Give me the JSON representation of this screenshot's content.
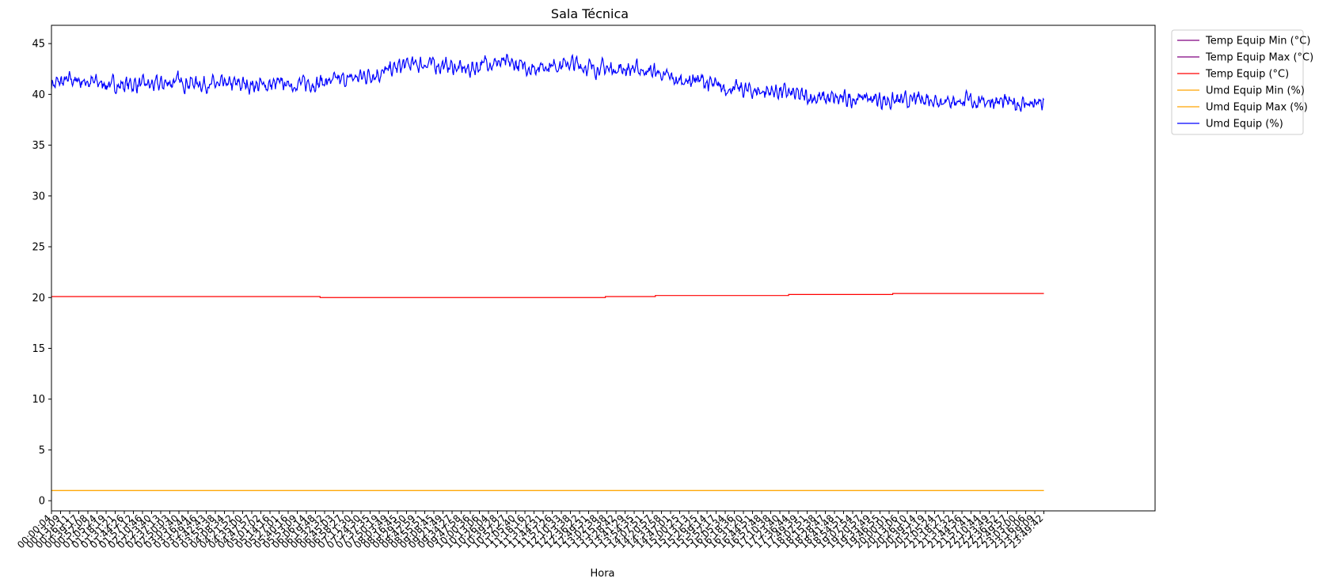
{
  "chart_data": {
    "type": "line",
    "title": "Sala Técnica",
    "xlabel": "Hora",
    "ylabel": "",
    "ylim": [
      -1,
      46.8
    ],
    "yticks": [
      0,
      5,
      10,
      15,
      20,
      25,
      30,
      35,
      40,
      45
    ],
    "grid": false,
    "legend_position": "outside-top-right",
    "x_first_label": "00:00:04",
    "x_last_label": "23:49:42",
    "x_range_hours": [
      0,
      26.5
    ],
    "series": [
      {
        "name": "Temp Equip Min (°C)",
        "color": "#800080",
        "x_hours": [],
        "values": []
      },
      {
        "name": "Temp Equip Max (°C)",
        "color": "#800080",
        "x_hours": [],
        "values": []
      },
      {
        "name": "Temp Equip (°C)",
        "color": "#ff0000",
        "step": true,
        "x_hours": [
          0,
          6.45,
          13.3,
          14.5,
          17.7,
          20.2,
          23.83
        ],
        "values": [
          20.1,
          20.0,
          20.1,
          20.2,
          20.3,
          20.4,
          20.4
        ]
      },
      {
        "name": "Umd Equip Min (%)",
        "color": "#ffa500",
        "x_hours": [
          0,
          23.83
        ],
        "values": [
          1.0,
          1.0
        ]
      },
      {
        "name": "Umd Equip Max (%)",
        "color": "#ffa500",
        "x_hours": [
          0,
          23.83
        ],
        "values": [
          1.0,
          1.0
        ]
      },
      {
        "name": "Umd Equip (%)",
        "color": "#0000ff",
        "noisy": true,
        "x_hours": [
          0,
          0.5,
          1.0,
          1.5,
          2.0,
          2.5,
          3.0,
          3.5,
          4.0,
          4.5,
          5.0,
          5.5,
          6.0,
          6.5,
          7.0,
          7.5,
          8.0,
          8.5,
          9.0,
          9.5,
          10.0,
          10.5,
          11.0,
          11.5,
          12.0,
          12.5,
          13.0,
          13.5,
          14.0,
          14.5,
          15.0,
          15.5,
          16.0,
          16.5,
          17.0,
          17.5,
          18.0,
          18.5,
          19.0,
          19.5,
          20.0,
          20.5,
          21.0,
          21.5,
          22.0,
          22.5,
          23.0,
          23.5,
          23.83
        ],
        "values": [
          41.0,
          41.4,
          41.2,
          40.9,
          41.0,
          40.9,
          41.3,
          41.1,
          40.9,
          41.0,
          40.9,
          41.0,
          41.0,
          41.2,
          41.4,
          41.8,
          42.2,
          42.9,
          43.0,
          42.8,
          42.4,
          43.2,
          43.0,
          42.6,
          42.9,
          43.0,
          42.6,
          42.5,
          42.5,
          42.2,
          41.3,
          41.5,
          40.7,
          40.5,
          40.3,
          40.3,
          39.8,
          39.6,
          39.5,
          39.7,
          39.4,
          39.3,
          39.6,
          39.4,
          39.3,
          39.4,
          39.1,
          39.1,
          39.0
        ]
      }
    ],
    "x_tick_labels": [
      "00:00:04",
      "00:13:09",
      "00:26:11",
      "00:39:17",
      "00:52:08",
      "01:05:24",
      "01:18:19",
      "01:31:21",
      "01:44:26",
      "01:57:12",
      "02:10:46",
      "02:23:40",
      "02:37:13",
      "02:50:03",
      "03:03:40",
      "03:16:44",
      "03:29:46",
      "03:42:43",
      "03:55:38",
      "04:08:34",
      "04:21:52",
      "04:35:00",
      "04:47:57",
      "05:01:02",
      "05:14:16",
      "05:27:01",
      "05:40:16",
      "05:53:09",
      "06:06:14",
      "06:19:48",
      "06:32:32",
      "06:45:03",
      "06:58:27",
      "07:11:30",
      "07:24:30",
      "07:37:35",
      "07:50:19",
      "08:03:49",
      "08:16:45",
      "08:29:50",
      "08:42:59",
      "08:55:51",
      "09:08:45",
      "09:21:49",
      "09:34:27",
      "09:47:58",
      "10:00:36",
      "10:13:06",
      "10:26:04",
      "10:39:28",
      "10:52:27",
      "11:05:40",
      "11:18:16",
      "11:31:22",
      "11:44:31",
      "11:57:26",
      "12:10:33",
      "12:23:38",
      "12:36:22",
      "12:49:31",
      "13:02:38",
      "13:15:38",
      "13:28:42",
      "13:41:29",
      "13:54:35",
      "14:07:51",
      "14:20:57",
      "14:33:58",
      "14:47:01",
      "15:00:25",
      "15:13:13",
      "15:26:25",
      "15:39:14",
      "15:52:17",
      "16:05:34",
      "16:18:36",
      "16:31:20",
      "16:44:51",
      "16:57:48",
      "17:10:38",
      "17:23:40",
      "17:36:44",
      "17:49:39",
      "18:02:51",
      "18:15:38",
      "18:28:47",
      "18:41:48",
      "18:54:51",
      "19:07:54",
      "19:20:57",
      "19:33:49",
      "19:46:55",
      "20:00:01",
      "20:13:06",
      "20:26:10",
      "20:39:14",
      "20:52:19",
      "21:05:24",
      "21:18:27",
      "21:31:32",
      "21:44:36",
      "21:57:41",
      "22:10:44",
      "22:23:49",
      "22:36:52",
      "22:49:57",
      "23:03:00",
      "23:16:06",
      "23:29:09",
      "23:49:42"
    ]
  }
}
